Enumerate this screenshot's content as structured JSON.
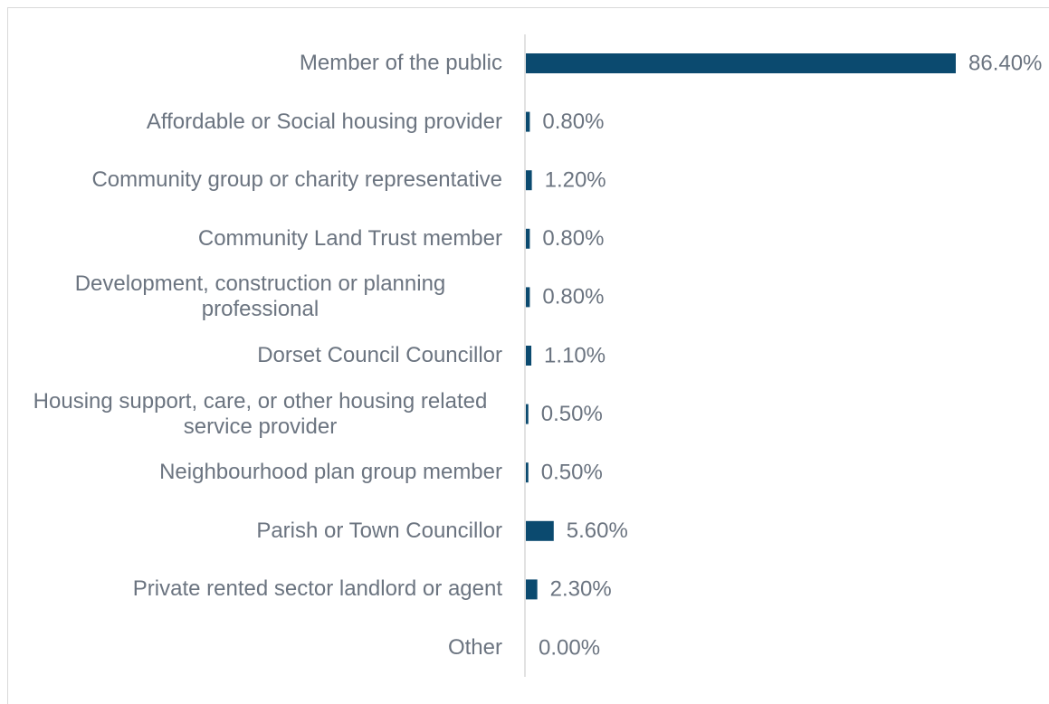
{
  "chart_data": {
    "type": "bar",
    "orientation": "horizontal",
    "color": "#0b4a6f",
    "categories": [
      "Member of the public",
      "Affordable or Social housing provider",
      "Community group or charity representative",
      "Community Land Trust member",
      "Development, construction or planning professional",
      "Dorset Council Councillor",
      "Housing support, care, or other housing related service provider",
      "Neighbourhood plan group member",
      "Parish or Town Councillor",
      "Private rented sector landlord or agent",
      "Other"
    ],
    "values": [
      86.4,
      0.8,
      1.2,
      0.8,
      0.8,
      1.1,
      0.5,
      0.5,
      5.6,
      2.3,
      0
    ],
    "value_labels": [
      "86.40%",
      "0.80%",
      "1.20%",
      "0.80%",
      "0.80%",
      "1.10%",
      "0.50%",
      "0.50%",
      "5.60%",
      "2.30%",
      "0.00%"
    ]
  }
}
